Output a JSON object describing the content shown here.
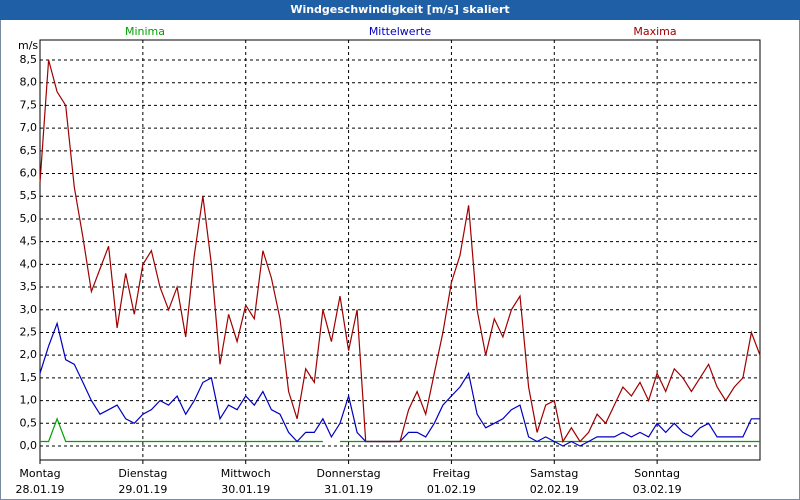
{
  "chart_data": {
    "type": "line",
    "title": "Windgeschwindigkeit [m/s] skaliert",
    "y_label": "m/s",
    "x": [
      0,
      2,
      4,
      6,
      8,
      10,
      12,
      14,
      16,
      18,
      20,
      22,
      24,
      26,
      28,
      30,
      32,
      34,
      36,
      38,
      40,
      42,
      44,
      46,
      48,
      50,
      52,
      54,
      56,
      58,
      60,
      62,
      64,
      66,
      68,
      70,
      72,
      74,
      76,
      78,
      80,
      82,
      84,
      86,
      88,
      90,
      92,
      94,
      96,
      98,
      100,
      102,
      104,
      106,
      108,
      110,
      112,
      114,
      116,
      118,
      120,
      122,
      124,
      126,
      128,
      130,
      132,
      134,
      136,
      138,
      140,
      142,
      144,
      146,
      148,
      150,
      152,
      154,
      156,
      158,
      160,
      162,
      164,
      166,
      168
    ],
    "xlim": [
      0,
      168
    ],
    "xticks": [
      {
        "value": 0,
        "label": [
          "Montag",
          "28.01.19"
        ]
      },
      {
        "value": 24,
        "label": [
          "Dienstag",
          "29.01.19"
        ]
      },
      {
        "value": 48,
        "label": [
          "Mittwoch",
          "30.01.19"
        ]
      },
      {
        "value": 72,
        "label": [
          "Donnerstag",
          "31.01.19"
        ]
      },
      {
        "value": 96,
        "label": [
          "Freitag",
          "01.02.19"
        ]
      },
      {
        "value": 120,
        "label": [
          "Samstag",
          "02.02.19"
        ]
      },
      {
        "value": 144,
        "label": [
          "Sonntag",
          "03.02.19"
        ]
      }
    ],
    "ylim": [
      0,
      8.5
    ],
    "yticks": [
      {
        "value": 0,
        "label": "0,0"
      },
      {
        "value": 0.5,
        "label": "0,5"
      },
      {
        "value": 1,
        "label": "1,0"
      },
      {
        "value": 1.5,
        "label": "1,5"
      },
      {
        "value": 2,
        "label": "2,0"
      },
      {
        "value": 2.5,
        "label": "2,5"
      },
      {
        "value": 3,
        "label": "3,0"
      },
      {
        "value": 3.5,
        "label": "3,5"
      },
      {
        "value": 4,
        "label": "4,0"
      },
      {
        "value": 4.5,
        "label": "4,5"
      },
      {
        "value": 5,
        "label": "5,0"
      },
      {
        "value": 5.5,
        "label": "5,5"
      },
      {
        "value": 6,
        "label": "6,0"
      },
      {
        "value": 6.5,
        "label": "6,5"
      },
      {
        "value": 7,
        "label": "7,0"
      },
      {
        "value": 7.5,
        "label": "7,5"
      },
      {
        "value": 8,
        "label": "8,0"
      },
      {
        "value": 8.5,
        "label": "8,5"
      }
    ],
    "grid": true,
    "series": [
      {
        "name": "Minima",
        "color": "#00a000",
        "values": [
          0.1,
          0.1,
          0.6,
          0.1,
          0.1,
          0.1,
          0.1,
          0.1,
          0.1,
          0.1,
          0.1,
          0.1,
          0.1,
          0.1,
          0.1,
          0.1,
          0.1,
          0.1,
          0.1,
          0.1,
          0.1,
          0.1,
          0.1,
          0.1,
          0.1,
          0.1,
          0.1,
          0.1,
          0.1,
          0.1,
          0.1,
          0.1,
          0.1,
          0.1,
          null,
          0.1,
          0.1,
          0.1,
          0.1,
          0.1,
          0.1,
          0.1,
          0.1,
          0.1,
          0.1,
          0.1,
          0.1,
          0.1,
          0.1,
          0.1,
          0.1,
          0.1,
          0.1,
          0.1,
          0.1,
          0.1,
          0.1,
          0.1,
          0.1,
          0.1,
          0.1,
          0.1,
          0.1,
          0.1,
          0.1,
          0.1,
          0.1,
          0.1,
          0.1,
          0.1,
          0.1,
          0.1,
          0.1,
          0.1,
          0.1,
          0.1,
          0.1,
          0.1,
          0.1,
          0.1,
          0.1,
          0.1,
          0.1,
          0.1,
          0.1
        ]
      },
      {
        "name": "Mittelwerte",
        "color": "#0000c0",
        "values": [
          1.6,
          2.2,
          2.7,
          1.9,
          1.8,
          1.4,
          1.0,
          0.7,
          0.8,
          0.9,
          0.6,
          0.5,
          0.7,
          0.8,
          1.0,
          0.9,
          1.1,
          0.7,
          1.0,
          1.4,
          1.5,
          0.6,
          0.9,
          0.8,
          1.1,
          0.9,
          1.2,
          0.8,
          0.7,
          0.3,
          0.1,
          0.3,
          0.3,
          0.6,
          0.2,
          0.5,
          1.1,
          0.3,
          0.1,
          0.1,
          0.1,
          0.1,
          0.1,
          0.3,
          0.3,
          0.2,
          0.5,
          0.9,
          1.1,
          1.3,
          1.6,
          0.7,
          0.4,
          0.5,
          0.6,
          0.8,
          0.9,
          0.2,
          0.1,
          0.2,
          0.1,
          0.0,
          0.1,
          0.0,
          0.1,
          0.2,
          0.2,
          0.2,
          0.3,
          0.2,
          0.3,
          0.2,
          0.5,
          0.3,
          0.5,
          0.3,
          0.2,
          0.4,
          0.5,
          0.2,
          0.2,
          0.2,
          0.2,
          0.6,
          0.6
        ]
      },
      {
        "name": "Maxima",
        "color": "#a00000",
        "values": [
          5.8,
          8.5,
          7.8,
          7.5,
          5.7,
          4.6,
          3.4,
          3.9,
          4.4,
          2.6,
          3.8,
          2.9,
          4.0,
          4.3,
          3.5,
          3.0,
          3.5,
          2.4,
          4.2,
          5.5,
          4.0,
          1.8,
          2.9,
          2.3,
          3.1,
          2.8,
          4.3,
          3.7,
          2.8,
          1.2,
          0.6,
          1.7,
          1.4,
          3.0,
          2.3,
          3.3,
          2.1,
          3.0,
          0.1,
          0.1,
          0.1,
          0.1,
          0.1,
          0.8,
          1.2,
          0.7,
          1.6,
          2.5,
          3.6,
          4.2,
          5.3,
          3.0,
          2.0,
          2.8,
          2.4,
          3.0,
          3.3,
          1.3,
          0.3,
          0.9,
          1.0,
          0.1,
          0.4,
          0.1,
          0.3,
          0.7,
          0.5,
          0.9,
          1.3,
          1.1,
          1.4,
          1.0,
          1.6,
          1.2,
          1.7,
          1.5,
          1.2,
          1.5,
          1.8,
          1.3,
          1.0,
          1.3,
          1.5,
          2.5,
          2.0
        ]
      }
    ]
  }
}
